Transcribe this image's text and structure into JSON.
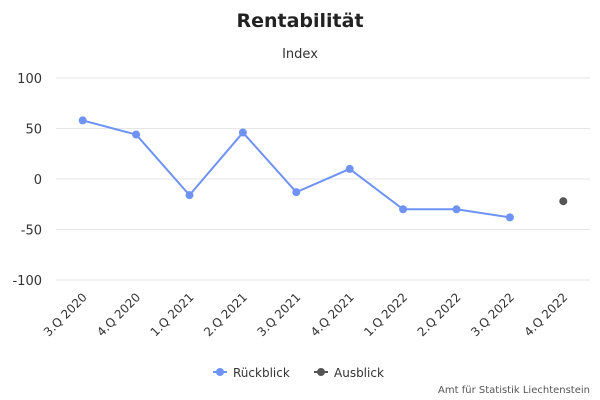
{
  "chart_data": {
    "type": "line",
    "title": "Rentabilität",
    "subtitle": "Index",
    "categories": [
      "3.Q 2020",
      "4.Q 2020",
      "1.Q 2021",
      "2.Q 2021",
      "3.Q 2021",
      "4.Q 2021",
      "1.Q 2022",
      "2.Q 2022",
      "3.Q 2022",
      "4.Q 2022"
    ],
    "ylim": [
      -100,
      100
    ],
    "yticks": [
      -100,
      -50,
      0,
      50,
      100
    ],
    "grid": true,
    "legend_position": "bottom",
    "series": [
      {
        "name": "Rückblick",
        "color": "#6f93f5",
        "values": [
          58,
          44,
          -16,
          46,
          -13,
          10,
          -30,
          -30,
          -38,
          null
        ]
      },
      {
        "name": "Ausblick",
        "color": "#555555",
        "values": [
          null,
          null,
          null,
          null,
          null,
          null,
          null,
          null,
          null,
          -22
        ]
      }
    ],
    "credit": "Amt für Statistik Liechtenstein"
  }
}
